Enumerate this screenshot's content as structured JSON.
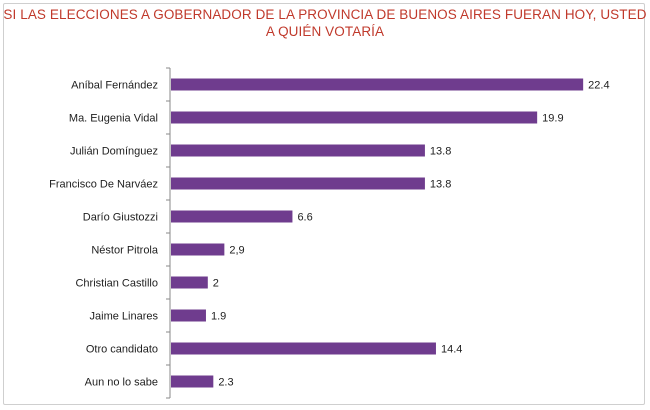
{
  "chart_data": {
    "type": "bar",
    "orientation": "horizontal",
    "title_lines": [
      "SI LAS ELECCIONES A GOBERNADOR DE LA PROVINCIA DE BUENOS AIRES FUERAN HOY, USTED",
      "A QUIÉN VOTARÍA"
    ],
    "categories": [
      "Aníbal Fernández",
      "Ma. Eugenia Vidal",
      "Julián Domínguez",
      "Francisco De Narváez",
      "Darío Giustozzi",
      "Néstor Pitrola",
      "Christian Castillo",
      "Jaime Linares",
      "Otro candidato",
      "Aun no lo sabe"
    ],
    "values": [
      22.4,
      19.9,
      13.8,
      13.8,
      6.6,
      2.9,
      2,
      1.9,
      14.4,
      2.3
    ],
    "value_labels": [
      "22.4",
      "19.9",
      "13.8",
      "13.8",
      "6.6",
      "2,9",
      "2",
      "1.9",
      "14.4",
      "2.3"
    ],
    "xlim": [
      0,
      25
    ],
    "xlabel": "",
    "ylabel": "",
    "legend": "none",
    "grid": false,
    "colors": {
      "bar": "#6f3c8e",
      "title": "#c0392b",
      "axis": "#8a8a8a",
      "text": "#1e1e1e"
    }
  }
}
